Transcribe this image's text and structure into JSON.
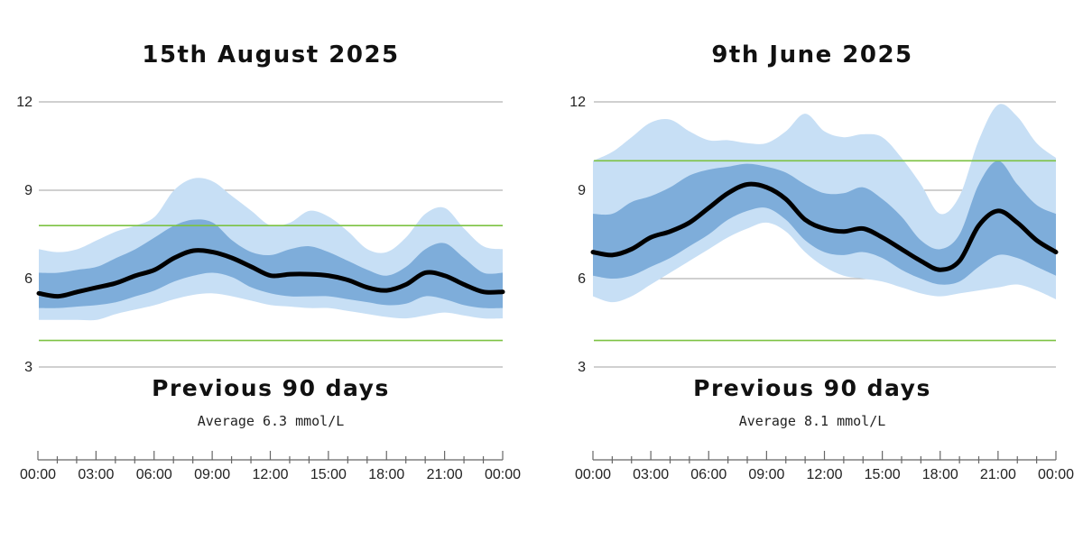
{
  "chart_data": [
    {
      "type": "area",
      "title": "15th August 2025",
      "subtitle": "Previous 90 days",
      "average_text": "Average 6.3 mmol/L",
      "ylim": [
        3,
        12
      ],
      "yticks": [
        3,
        6,
        9,
        12
      ],
      "target_range": [
        3.9,
        7.8
      ],
      "x": [
        "00:00",
        "01:00",
        "02:00",
        "03:00",
        "04:00",
        "05:00",
        "06:00",
        "07:00",
        "08:00",
        "09:00",
        "10:00",
        "11:00",
        "12:00",
        "13:00",
        "14:00",
        "15:00",
        "16:00",
        "17:00",
        "18:00",
        "19:00",
        "20:00",
        "21:00",
        "22:00",
        "23:00",
        "00:00"
      ],
      "xtick_labels": [
        "00:00",
        "03:00",
        "06:00",
        "09:00",
        "12:00",
        "15:00",
        "18:00",
        "21:00",
        "00:00"
      ],
      "series": [
        {
          "role": "median",
          "values": [
            5.5,
            5.4,
            5.55,
            5.7,
            5.85,
            6.1,
            6.3,
            6.7,
            6.95,
            6.9,
            6.7,
            6.4,
            6.1,
            6.15,
            6.15,
            6.1,
            5.95,
            5.7,
            5.6,
            5.8,
            6.2,
            6.1,
            5.8,
            5.55,
            5.55
          ]
        },
        {
          "role": "p25",
          "values": [
            5.0,
            5.0,
            5.05,
            5.1,
            5.2,
            5.4,
            5.6,
            5.9,
            6.1,
            6.2,
            6.05,
            5.7,
            5.5,
            5.4,
            5.4,
            5.4,
            5.3,
            5.2,
            5.1,
            5.15,
            5.4,
            5.3,
            5.1,
            5.0,
            5.0
          ]
        },
        {
          "role": "p75",
          "values": [
            6.2,
            6.2,
            6.3,
            6.4,
            6.7,
            7.0,
            7.4,
            7.8,
            8.0,
            7.9,
            7.3,
            6.9,
            6.8,
            7.0,
            7.1,
            6.9,
            6.6,
            6.3,
            6.1,
            6.4,
            7.0,
            7.2,
            6.7,
            6.2,
            6.2
          ]
        },
        {
          "role": "p10",
          "values": [
            4.6,
            4.6,
            4.6,
            4.6,
            4.8,
            4.95,
            5.1,
            5.3,
            5.45,
            5.5,
            5.4,
            5.25,
            5.1,
            5.05,
            5.0,
            5.0,
            4.9,
            4.8,
            4.7,
            4.65,
            4.75,
            4.85,
            4.75,
            4.65,
            4.65
          ]
        },
        {
          "role": "p90",
          "values": [
            7.0,
            6.9,
            7.0,
            7.3,
            7.6,
            7.8,
            8.1,
            9.0,
            9.4,
            9.3,
            8.8,
            8.3,
            7.8,
            7.9,
            8.3,
            8.1,
            7.6,
            7.0,
            6.9,
            7.4,
            8.2,
            8.4,
            7.7,
            7.1,
            7.0
          ]
        }
      ],
      "colors": {
        "outer_band": "#c7dff5",
        "inner_band": "#7eadda",
        "median": "#000000",
        "target": "#7cc242",
        "grid": "#b5b5b5"
      }
    },
    {
      "type": "area",
      "title": "9th June 2025",
      "subtitle": "Previous 90 days",
      "average_text": "Average 8.1 mmol/L",
      "ylim": [
        3,
        12
      ],
      "yticks": [
        3,
        6,
        9,
        12
      ],
      "target_range": [
        3.9,
        10.0
      ],
      "x": [
        "00:00",
        "01:00",
        "02:00",
        "03:00",
        "04:00",
        "05:00",
        "06:00",
        "07:00",
        "08:00",
        "09:00",
        "10:00",
        "11:00",
        "12:00",
        "13:00",
        "14:00",
        "15:00",
        "16:00",
        "17:00",
        "18:00",
        "19:00",
        "20:00",
        "21:00",
        "22:00",
        "23:00",
        "00:00"
      ],
      "xtick_labels": [
        "00:00",
        "03:00",
        "06:00",
        "09:00",
        "12:00",
        "15:00",
        "18:00",
        "21:00",
        "00:00"
      ],
      "series": [
        {
          "role": "median",
          "values": [
            6.9,
            6.8,
            7.0,
            7.4,
            7.6,
            7.9,
            8.4,
            8.9,
            9.2,
            9.1,
            8.7,
            8.0,
            7.7,
            7.6,
            7.7,
            7.4,
            7.0,
            6.6,
            6.3,
            6.6,
            7.8,
            8.3,
            7.9,
            7.3,
            6.9
          ]
        },
        {
          "role": "p25",
          "values": [
            6.1,
            6.0,
            6.1,
            6.4,
            6.7,
            7.1,
            7.5,
            8.0,
            8.3,
            8.4,
            8.0,
            7.3,
            6.9,
            6.8,
            6.9,
            6.7,
            6.3,
            6.0,
            5.8,
            5.9,
            6.4,
            6.8,
            6.7,
            6.4,
            6.1
          ]
        },
        {
          "role": "p75",
          "values": [
            8.2,
            8.2,
            8.6,
            8.8,
            9.1,
            9.5,
            9.7,
            9.8,
            9.9,
            9.8,
            9.6,
            9.2,
            8.9,
            8.9,
            9.1,
            8.7,
            8.1,
            7.3,
            7.0,
            7.5,
            9.2,
            10.0,
            9.2,
            8.5,
            8.2
          ]
        },
        {
          "role": "p10",
          "values": [
            5.4,
            5.2,
            5.4,
            5.8,
            6.2,
            6.6,
            7.0,
            7.4,
            7.7,
            7.9,
            7.6,
            6.9,
            6.4,
            6.1,
            6.0,
            5.9,
            5.7,
            5.5,
            5.4,
            5.5,
            5.6,
            5.7,
            5.8,
            5.6,
            5.3
          ]
        },
        {
          "role": "p90",
          "values": [
            10.0,
            10.3,
            10.8,
            11.3,
            11.4,
            11.0,
            10.7,
            10.7,
            10.6,
            10.6,
            11.0,
            11.6,
            11.0,
            10.8,
            10.9,
            10.8,
            10.1,
            9.2,
            8.2,
            8.8,
            10.7,
            11.9,
            11.5,
            10.6,
            10.1
          ]
        }
      ],
      "colors": {
        "outer_band": "#c7dff5",
        "inner_band": "#7eadda",
        "median": "#000000",
        "target": "#7cc242",
        "grid": "#b5b5b5"
      }
    }
  ]
}
